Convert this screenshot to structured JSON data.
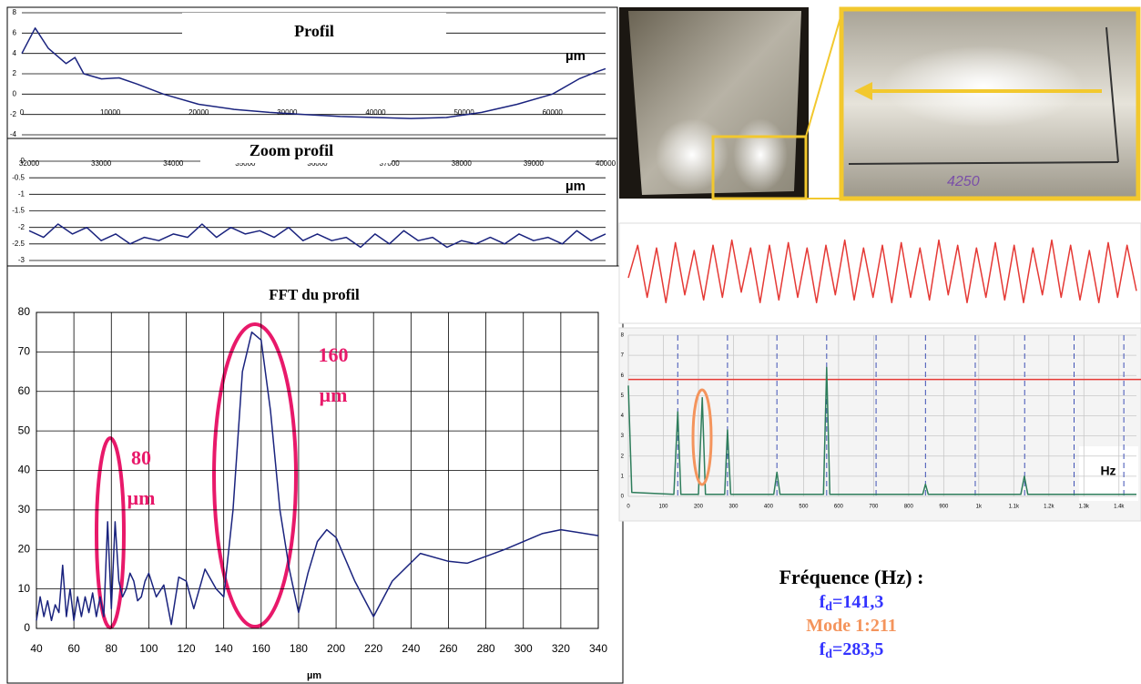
{
  "chart_data": [
    {
      "type": "line",
      "title": "Profil",
      "annotations": [
        "µm"
      ],
      "color": "#1a237e",
      "grid": "y",
      "x": [
        0,
        1500,
        3000,
        5000,
        6000,
        7000,
        9000,
        11000,
        13000,
        16000,
        20000,
        24000,
        28000,
        32000,
        36000,
        40000,
        44000,
        48000,
        52000,
        56000,
        60000,
        63000,
        65000,
        66000
      ],
      "values": [
        4,
        6.5,
        4.5,
        3,
        3.6,
        2,
        1.5,
        1.6,
        1,
        0,
        -1,
        -1.5,
        -1.8,
        -2,
        -2.2,
        -2.3,
        -2.4,
        -2.3,
        -1.8,
        -1,
        0,
        1.5,
        2.2,
        2.5
      ],
      "xlim": [
        0,
        66000
      ],
      "ylim": [
        -4,
        8
      ],
      "xticks": [
        0,
        10000,
        20000,
        30000,
        40000,
        50000,
        60000
      ],
      "yticks": [
        -4,
        -2,
        0,
        2,
        4,
        6,
        8
      ]
    },
    {
      "type": "line",
      "title": "Zoom profil",
      "annotations": [
        "µm"
      ],
      "color": "#1a237e",
      "grid": "y",
      "x": [
        32000,
        32200,
        32400,
        32600,
        32800,
        33000,
        33200,
        33400,
        33600,
        33800,
        34000,
        34200,
        34400,
        34600,
        34800,
        35000,
        35200,
        35400,
        35600,
        35800,
        36000,
        36200,
        36400,
        36600,
        36800,
        37000,
        37200,
        37400,
        37600,
        37800,
        38000,
        38200,
        38400,
        38600,
        38800,
        39000,
        39200,
        39400,
        39600,
        39800,
        40000
      ],
      "values": [
        -2.1,
        -2.3,
        -1.9,
        -2.2,
        -2.0,
        -2.4,
        -2.2,
        -2.5,
        -2.3,
        -2.4,
        -2.2,
        -2.3,
        -1.9,
        -2.3,
        -2.0,
        -2.2,
        -2.1,
        -2.3,
        -2.0,
        -2.4,
        -2.2,
        -2.4,
        -2.3,
        -2.6,
        -2.2,
        -2.5,
        -2.1,
        -2.4,
        -2.3,
        -2.6,
        -2.4,
        -2.5,
        -2.3,
        -2.5,
        -2.2,
        -2.4,
        -2.3,
        -2.5,
        -2.1,
        -2.4,
        -2.2
      ],
      "xlim": [
        32000,
        40000
      ],
      "ylim": [
        -3,
        0
      ],
      "xticks": [
        32000,
        33000,
        34000,
        35000,
        36000,
        37000,
        38000,
        39000,
        40000
      ],
      "yticks": [
        0,
        -0.5,
        -1,
        -1.5,
        -2,
        -2.5,
        -3
      ]
    },
    {
      "type": "line",
      "title": "FFT du profil",
      "x_label": "µm",
      "annotations": [
        [
          "160",
          "µm"
        ],
        [
          "80",
          "µm"
        ]
      ],
      "color": "#1a237e",
      "grid": "both",
      "x": [
        40,
        42,
        44,
        46,
        48,
        50,
        52,
        54,
        56,
        58,
        60,
        62,
        64,
        66,
        68,
        70,
        72,
        74,
        76,
        78,
        80,
        82,
        84,
        86,
        88,
        90,
        92,
        94,
        96,
        98,
        100,
        104,
        108,
        112,
        116,
        120,
        124,
        130,
        136,
        140,
        145,
        150,
        155,
        160,
        165,
        170,
        175,
        180,
        185,
        190,
        195,
        200,
        210,
        220,
        230,
        245,
        260,
        270,
        290,
        310,
        320,
        340
      ],
      "values": [
        2,
        8,
        3,
        7,
        2,
        6,
        4,
        16,
        3,
        10,
        2,
        8,
        3,
        8,
        4,
        9,
        3,
        8,
        3,
        27,
        5,
        27,
        12,
        8,
        10,
        14,
        12,
        7,
        8,
        12,
        14,
        8,
        11,
        1,
        13,
        12,
        5,
        15,
        10,
        8,
        30,
        65,
        75,
        73,
        55,
        30,
        15,
        4,
        14,
        22,
        25,
        23,
        12,
        3,
        12,
        19,
        17,
        16.5,
        20,
        24,
        25,
        23.5
      ],
      "xlim": [
        40,
        340
      ],
      "ylim": [
        0,
        80
      ],
      "xticks": [
        40,
        60,
        80,
        100,
        120,
        140,
        160,
        180,
        200,
        220,
        240,
        260,
        280,
        300,
        320,
        340
      ],
      "yticks": [
        0,
        10,
        20,
        30,
        40,
        50,
        60,
        70,
        80
      ]
    },
    {
      "type": "line",
      "color": "#e53935",
      "grid": "y",
      "values": [
        55,
        80,
        40,
        78,
        36,
        82,
        42,
        76,
        38,
        80,
        40,
        84,
        44,
        78,
        36,
        80,
        38,
        82,
        40,
        78,
        36,
        80,
        42,
        84,
        38,
        78,
        40,
        80,
        36,
        82,
        40,
        78,
        38,
        84,
        42,
        80,
        36,
        78,
        40,
        82,
        38,
        80,
        36,
        78,
        42,
        84,
        40,
        80,
        38,
        76,
        36,
        82,
        40,
        80,
        45
      ],
      "ylim": [
        25,
        90
      ]
    },
    {
      "type": "line",
      "annotations": [
        "Hz"
      ],
      "color": "#2e7d5b",
      "grid": "both",
      "threshold": 5.8,
      "threshold_color": "#e53935",
      "harmonics": [
        141,
        283,
        424,
        566,
        707,
        848,
        990,
        1131,
        1272,
        1414
      ],
      "harmonics_color": "#3f51b5",
      "x": [
        0,
        10,
        130,
        141,
        150,
        200,
        211,
        220,
        275,
        283,
        292,
        415,
        424,
        433,
        557,
        566,
        575,
        840,
        848,
        856,
        1120,
        1130,
        1140,
        1450
      ],
      "values": [
        5.5,
        0.2,
        0.1,
        4.2,
        0.1,
        0.1,
        4.9,
        0.1,
        0.1,
        3.3,
        0.1,
        0.1,
        1.2,
        0.1,
        0.1,
        6.4,
        0.1,
        0.1,
        0.6,
        0.1,
        0.1,
        1,
        0.1,
        0.1
      ],
      "xlim": [
        0,
        1450
      ],
      "ylim": [
        0,
        8
      ],
      "xticks": [
        0,
        100,
        200,
        300,
        400,
        500,
        600,
        700,
        800,
        900,
        {
          "value": 1000,
          "label": "1k"
        },
        {
          "value": 1100,
          "label": "1.1k"
        },
        {
          "value": 1200,
          "label": "1.2k"
        },
        {
          "value": 1300,
          "label": "1.3k"
        },
        {
          "value": 1400,
          "label": "1.4k"
        }
      ],
      "yticks": [
        0,
        1,
        2,
        3,
        4,
        5,
        6,
        7,
        8
      ]
    }
  ],
  "photo": {
    "label": "4250"
  },
  "frequency_panel": {
    "title": "Fréquence (Hz) :",
    "lines": [
      {
        "parts": [
          "f",
          "d",
          "=141,3"
        ],
        "color": "#3333ff"
      },
      {
        "parts": [
          "Mode 1:211"
        ],
        "color": "#f4945c"
      },
      {
        "parts": [
          "f",
          "d",
          "=283,5"
        ],
        "color": "#3333ff"
      }
    ]
  }
}
